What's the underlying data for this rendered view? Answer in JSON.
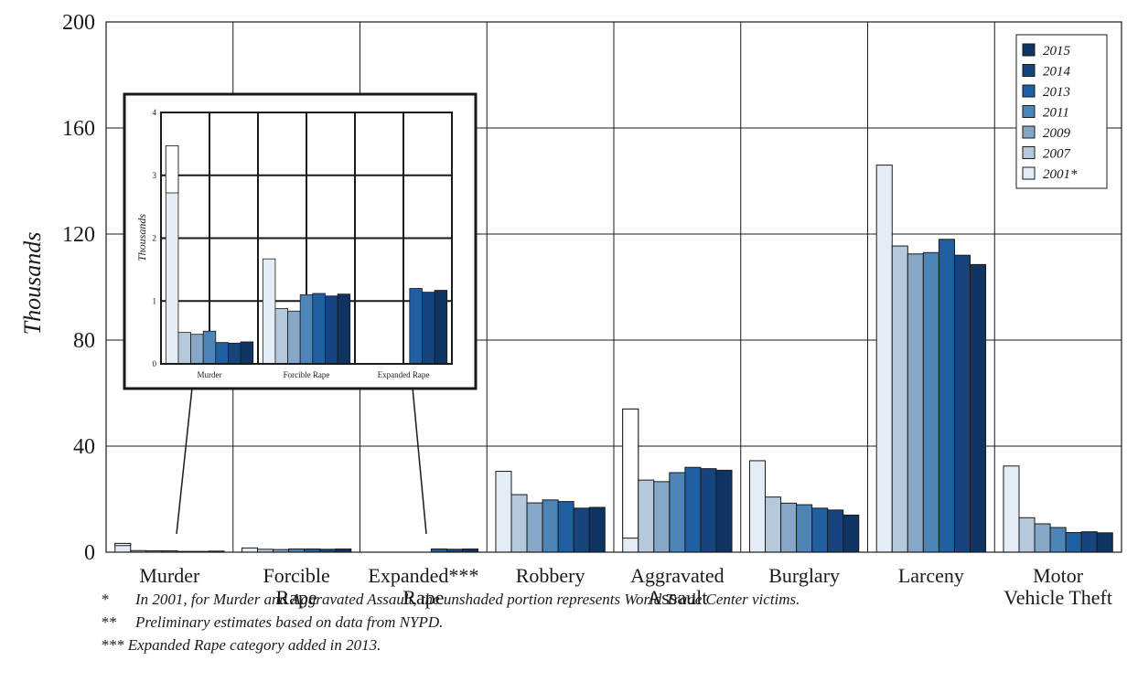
{
  "chart_data": {
    "type": "bar",
    "title": "",
    "xlabel": "",
    "ylabel": "Thousands",
    "ylim": [
      0,
      200
    ],
    "yticks": [
      0,
      40,
      80,
      120,
      160,
      200
    ],
    "grid": true,
    "legend_position": "top-right",
    "categories": [
      {
        "lines": [
          "Murder"
        ]
      },
      {
        "lines": [
          "Forcible",
          "Rape"
        ]
      },
      {
        "lines": [
          "Expanded***",
          "Rape"
        ]
      },
      {
        "lines": [
          "Robbery"
        ]
      },
      {
        "lines": [
          "Aggravated",
          "Assault"
        ]
      },
      {
        "lines": [
          "Burglary"
        ]
      },
      {
        "lines": [
          "Larceny"
        ]
      },
      {
        "lines": [
          "Motor",
          "Vehicle Theft"
        ]
      }
    ],
    "series": [
      {
        "name": "2001*",
        "color": "#e4edf5",
        "values": [
          3.3,
          1.6,
          null,
          30.5,
          54.0,
          34.5,
          146.0,
          32.5
        ],
        "wtc_portion": [
          2.5,
          null,
          null,
          null,
          5.3,
          null,
          null,
          null
        ]
      },
      {
        "name": "2007",
        "color": "#b6c8dc",
        "values": [
          0.6,
          1.1,
          null,
          21.7,
          27.2,
          20.8,
          115.5,
          13.0
        ]
      },
      {
        "name": "2009",
        "color": "#86a7c7",
        "values": [
          0.5,
          1.0,
          null,
          18.6,
          26.6,
          18.5,
          112.5,
          10.7
        ]
      },
      {
        "name": "2011",
        "color": "#4d85b8",
        "values": [
          0.5,
          1.2,
          null,
          19.7,
          30.0,
          17.9,
          113.0,
          9.3
        ]
      },
      {
        "name": "2013",
        "color": "#1f5fa2",
        "values": [
          0.3,
          1.2,
          1.2,
          19.1,
          32.0,
          16.6,
          118.0,
          7.4
        ]
      },
      {
        "name": "2014",
        "color": "#15447f",
        "values": [
          0.3,
          1.1,
          1.1,
          16.6,
          31.5,
          15.9,
          112.0,
          7.7
        ]
      },
      {
        "name": "2015",
        "color": "#0f3461",
        "values": [
          0.4,
          1.2,
          1.2,
          16.9,
          30.9,
          14.0,
          108.5,
          7.3
        ]
      }
    ],
    "inset": {
      "ylabel": "Thousands",
      "ylim": [
        0,
        4
      ],
      "yticks": [
        0,
        1,
        2,
        3,
        4
      ],
      "categories": [
        "Murder",
        "Forcible Rape",
        "Expanded Rape"
      ],
      "series": [
        {
          "name": "2001*",
          "values": [
            3.47,
            1.67,
            null
          ],
          "wtc_portion": [
            2.72,
            null,
            null
          ]
        },
        {
          "name": "2007",
          "values": [
            0.5,
            0.88,
            null
          ]
        },
        {
          "name": "2009",
          "values": [
            0.47,
            0.84,
            null
          ]
        },
        {
          "name": "2011",
          "values": [
            0.52,
            1.1,
            null
          ]
        },
        {
          "name": "2013",
          "values": [
            0.34,
            1.12,
            1.2
          ]
        },
        {
          "name": "2014",
          "values": [
            0.33,
            1.08,
            1.14
          ]
        },
        {
          "name": "2015",
          "values": [
            0.35,
            1.11,
            1.17
          ]
        }
      ]
    },
    "notes": [
      {
        "mark": "*",
        "text": "In 2001, for Murder and Aggravated Assault, the unshaded portion represents World Trade Center victims."
      },
      {
        "mark": "**",
        "text": "Preliminary estimates based on data from NYPD."
      },
      {
        "mark": "***",
        "text": "Expanded Rape category added in 2013."
      }
    ]
  }
}
